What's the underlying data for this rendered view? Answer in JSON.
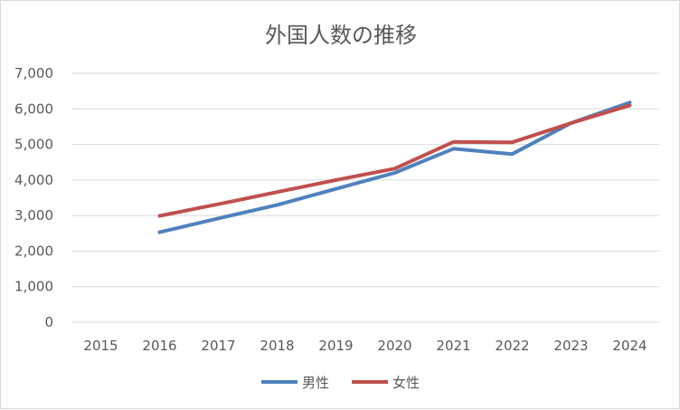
{
  "chart_data": {
    "type": "line",
    "title": "外国人数の推移",
    "xlabel": "",
    "ylabel": "",
    "categories": [
      "2015",
      "2016",
      "2017",
      "2018",
      "2019",
      "2020",
      "2021",
      "2022",
      "2023",
      "2024"
    ],
    "ylim": [
      0,
      7000
    ],
    "yticks": [
      0,
      1000,
      2000,
      3000,
      4000,
      5000,
      6000,
      7000
    ],
    "ytick_labels": [
      "0",
      "1,000",
      "2,000",
      "3,000",
      "4,000",
      "5,000",
      "6,000",
      "7,000"
    ],
    "grid": true,
    "legend_position": "bottom",
    "series": [
      {
        "name": "男性",
        "color": "#4f81bd",
        "values": [
          null,
          2530,
          2920,
          3300,
          3750,
          4200,
          4880,
          4730,
          5600,
          6180
        ]
      },
      {
        "name": "女性",
        "color": "#c0504d",
        "values": [
          null,
          2990,
          3320,
          3660,
          4000,
          4320,
          5070,
          5060,
          5600,
          6100
        ]
      }
    ]
  }
}
